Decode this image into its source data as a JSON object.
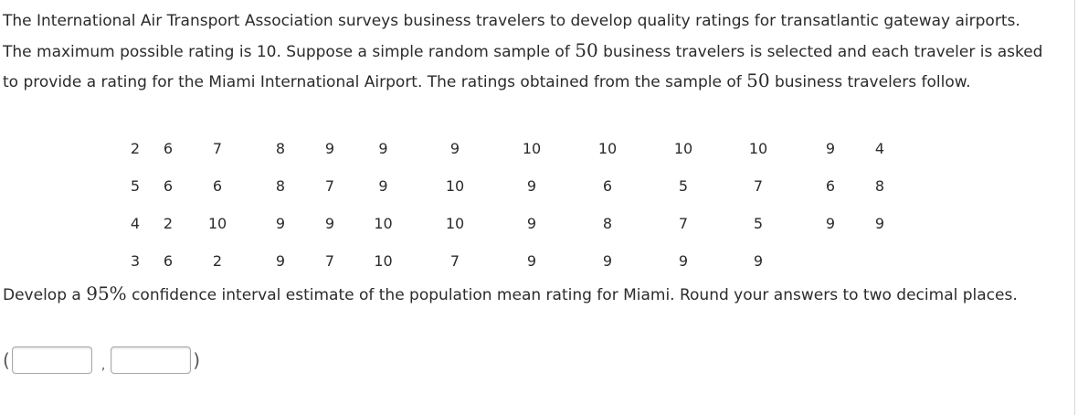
{
  "intro": {
    "part1": "The International Air Transport Association surveys business travelers to develop quality ratings for transatlantic gateway airports. The maximum possible rating is 10. Suppose a simple random sample of ",
    "n1": "50",
    "part2": " business travelers is selected and each traveler is asked to provide a rating for the Miami International Airport. The ratings obtained from the sample of ",
    "n2": "50",
    "part3": " business travelers follow."
  },
  "ratings": [
    [
      "2",
      "6",
      "7",
      "8",
      "9",
      "9",
      "9",
      "10",
      "10",
      "10",
      "10",
      "9",
      "4"
    ],
    [
      "5",
      "6",
      "6",
      "8",
      "7",
      "9",
      "10",
      "9",
      "6",
      "5",
      "7",
      "6",
      "8"
    ],
    [
      "4",
      "2",
      "10",
      "9",
      "9",
      "10",
      "10",
      "9",
      "8",
      "7",
      "5",
      "9",
      "9"
    ],
    [
      "3",
      "6",
      "2",
      "9",
      "7",
      "10",
      "7",
      "9",
      "9",
      "9",
      "9",
      "",
      ""
    ]
  ],
  "question": {
    "part1": "Develop a ",
    "pct": "95%",
    "part2": " confidence interval estimate of the population mean rating for Miami. Round your answers to two decimal places."
  },
  "answer": {
    "open": "(",
    "sep": ",",
    "close": ")",
    "lower_value": "",
    "upper_value": ""
  }
}
